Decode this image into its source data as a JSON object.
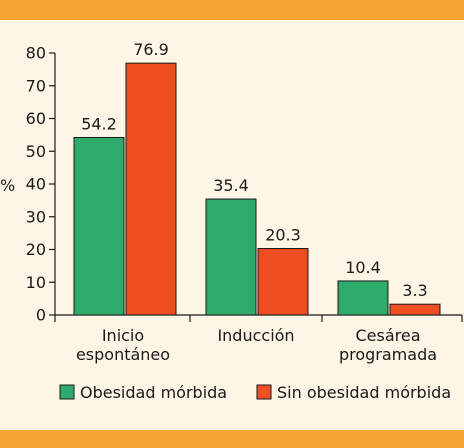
{
  "chart_data": {
    "type": "bar",
    "ylabel": "%",
    "ylim": [
      0,
      80
    ],
    "yticks": [
      0,
      10,
      20,
      30,
      40,
      50,
      60,
      70,
      80
    ],
    "categories": [
      [
        "Inicio",
        "espontáneo"
      ],
      [
        "Inducción"
      ],
      [
        "Cesárea",
        "programada"
      ]
    ],
    "series": [
      {
        "name": "Obesidad mórbida",
        "color": "#2eaa6a",
        "values": [
          54.2,
          35.4,
          10.4
        ]
      },
      {
        "name": "Sin obesidad mórbida",
        "color": "#ee4e22",
        "values": [
          76.9,
          20.3,
          3.3
        ]
      }
    ],
    "value_labels": [
      [
        "54.2",
        "35.4",
        "10.4"
      ],
      [
        "76.9",
        "20.3",
        "3.3"
      ]
    ],
    "legend_position": "bottom"
  }
}
